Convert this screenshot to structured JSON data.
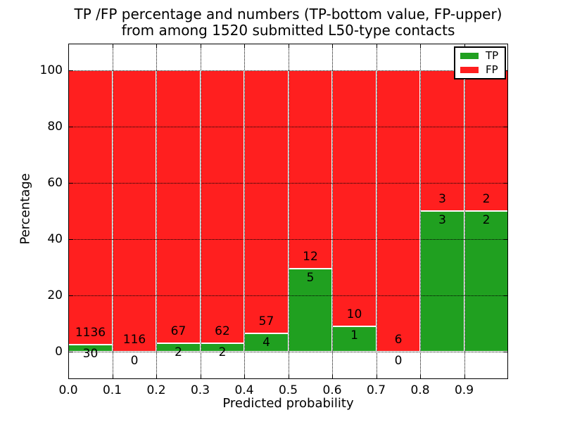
{
  "chart_data": {
    "type": "bar",
    "stacked": true,
    "normalized": "percent-of-bin-total",
    "title_line1": "TP /FP percentage and numbers (TP-bottom value, FP-upper)",
    "title_line2": "from among 1520 submitted L50-type contacts",
    "total_submitted": 1520,
    "xlabel": "Predicted probability",
    "ylabel": "Percentage",
    "xlim": [
      0.0,
      1.0
    ],
    "ylim": [
      -10,
      110
    ],
    "grid_style": "dotted",
    "bin_edges": [
      0.0,
      0.1,
      0.2,
      0.3,
      0.4,
      0.5,
      0.6,
      0.7,
      0.8,
      0.9,
      1.0
    ],
    "x_tick_labels": [
      "0.0",
      "0.1",
      "0.2",
      "0.3",
      "0.4",
      "0.5",
      "0.6",
      "0.7",
      "0.8",
      "0.9"
    ],
    "y_tick_values": [
      0,
      20,
      40,
      60,
      80,
      100
    ],
    "series": [
      {
        "name": "TP",
        "color": "#20a020",
        "counts": [
          30,
          0,
          2,
          2,
          4,
          5,
          1,
          0,
          3,
          2
        ]
      },
      {
        "name": "FP",
        "color": "#ff1f1f",
        "counts": [
          1136,
          116,
          67,
          62,
          57,
          12,
          10,
          6,
          3,
          2
        ]
      }
    ],
    "tp_percent_per_bin": [
      2.57,
      0.0,
      2.9,
      3.13,
      6.56,
      29.41,
      9.09,
      0.0,
      50.0,
      50.0
    ],
    "legend": {
      "position": "upper right",
      "entries": [
        {
          "label": "TP",
          "color": "#20a020"
        },
        {
          "label": "FP",
          "color": "#ff1f1f"
        }
      ]
    }
  }
}
